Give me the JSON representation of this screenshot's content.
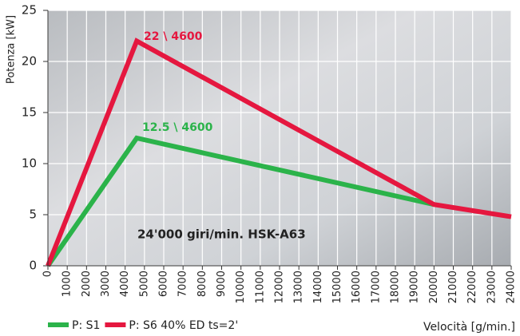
{
  "chart_data": {
    "type": "line",
    "y_label": "Potenza [kW]",
    "x_label": "Velocità [g/min.]",
    "annotations": [
      "22 \\ 4600",
      "12.5 \\ 4600",
      "24'000 giri/min. HSK-A63"
    ],
    "series": [
      {
        "name": "P: S1",
        "color": "#2bb34a",
        "x": [
          0,
          4600,
          20000
        ],
        "values": [
          0,
          12.5,
          6
        ]
      },
      {
        "name": "P: S6 40% ED ts=2'",
        "color": "#e5173f",
        "x": [
          0,
          4600,
          20000,
          24000
        ],
        "values": [
          0,
          22,
          6,
          4.8
        ]
      }
    ],
    "xlim": [
      0,
      24000
    ],
    "xticks": [
      0,
      1000,
      2000,
      3000,
      4000,
      5000,
      6000,
      7000,
      8000,
      9000,
      10000,
      11000,
      12000,
      13000,
      14000,
      15000,
      16000,
      17000,
      18000,
      19000,
      20000,
      21000,
      22000,
      23000,
      24000
    ],
    "ylim": [
      0,
      25
    ],
    "yticks": [
      0,
      5,
      10,
      15,
      20,
      25
    ],
    "grid": true
  }
}
